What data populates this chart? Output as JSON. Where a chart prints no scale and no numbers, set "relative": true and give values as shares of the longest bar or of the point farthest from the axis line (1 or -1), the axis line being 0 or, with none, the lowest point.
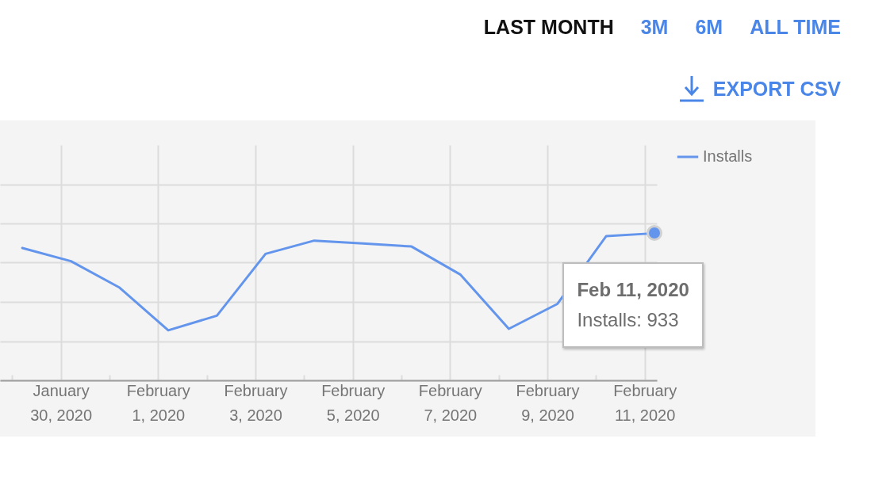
{
  "chart_data": {
    "type": "line",
    "relative": true,
    "series": [
      {
        "name": "Installs",
        "color": "#6495ed",
        "x": [
          "2020-01-29T05:00",
          "2020-01-30T05:00",
          "2020-01-31T05:00",
          "2020-02-01T05:00",
          "2020-02-02T05:00",
          "2020-02-03T05:00",
          "2020-02-04T05:00",
          "2020-02-05T05:00",
          "2020-02-06T05:00",
          "2020-02-07T05:00",
          "2020-02-08T05:00",
          "2020-02-09T05:00",
          "2020-02-10T05:00",
          "2020-02-11T05:00"
        ],
        "values": [
          0.9,
          0.81,
          0.63,
          0.34,
          0.44,
          0.86,
          0.95,
          0.93,
          0.91,
          0.72,
          0.35,
          0.52,
          0.98,
          1
        ]
      }
    ],
    "xlim": [
      "2020-01-28T18:00",
      "2020-02-11T06:00"
    ],
    "xticks": [
      {
        "value": "2020-01-29",
        "label": null
      },
      {
        "value": "2020-01-30",
        "label": "January 30, 2020"
      },
      {
        "value": "2020-01-31",
        "label": null
      },
      {
        "value": "2020-02-01",
        "label": "February 1, 2020"
      },
      {
        "value": "2020-02-02",
        "label": null
      },
      {
        "value": "2020-02-03",
        "label": "February 3, 2020"
      },
      {
        "value": "2020-02-04",
        "label": null
      },
      {
        "value": "2020-02-05",
        "label": "February 5, 2020"
      },
      {
        "value": "2020-02-06",
        "label": null
      },
      {
        "value": "2020-02-07",
        "label": "February 7, 2020"
      },
      {
        "value": "2020-02-08",
        "label": null
      },
      {
        "value": "2020-02-09",
        "label": "February 9, 2020"
      },
      {
        "value": "2020-02-10",
        "label": null
      },
      {
        "value": "2020-02-11",
        "label": "February 11, 2020"
      }
    ],
    "grid": true,
    "legend": "top right",
    "marker": "none",
    "line_style": "solid",
    "annotations": [
      {
        "text": "Feb 11, 2020\nInstalls: 933",
        "x": "2020-02-11T05:00",
        "y": 1
      },
      "LAST MONTH",
      "3M",
      "6M",
      "ALL TIME",
      "EXPORT CSV"
    ]
  }
}
